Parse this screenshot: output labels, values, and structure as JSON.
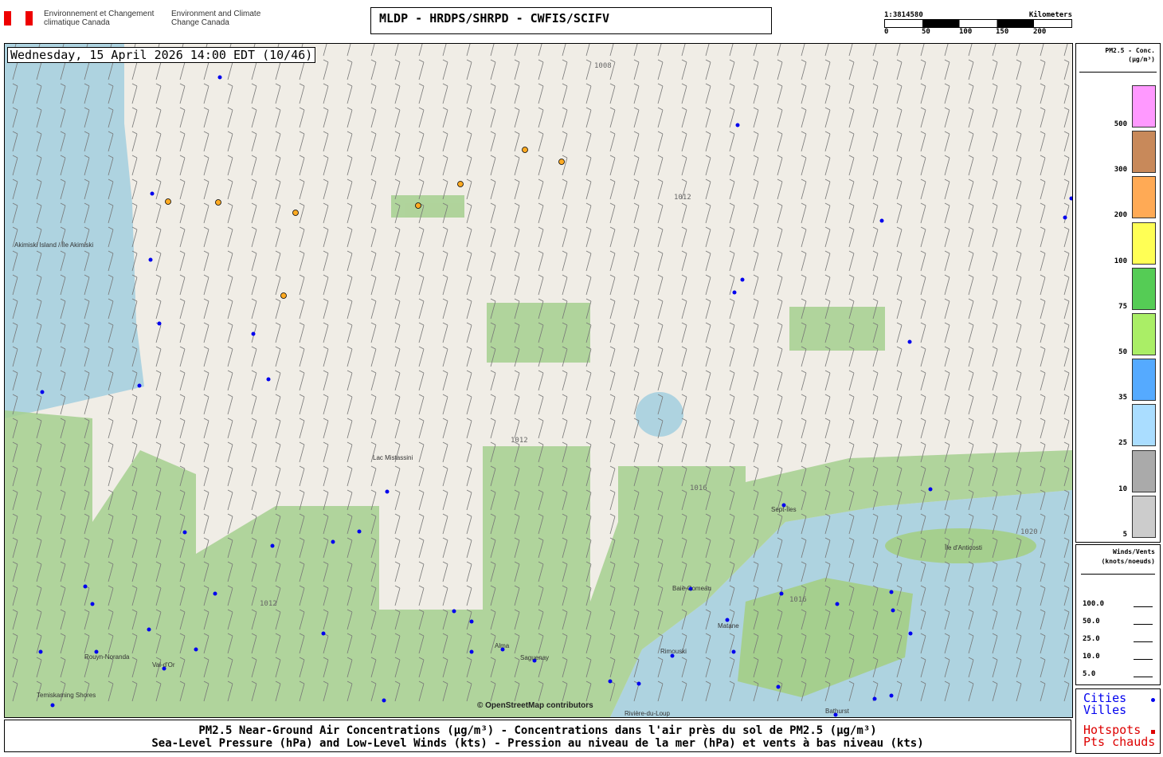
{
  "header": {
    "agency_fr": "Environnement et Changement climatique Canada",
    "agency_en": "Environment and Climate Change Canada",
    "title": "MLDP - HRDPS/SHRPD - CWFIS/SCIFV"
  },
  "scale": {
    "ratio": "1:3814580",
    "unit": "Kilometers",
    "ticks": [
      "0",
      "50",
      "100",
      "150",
      "200"
    ]
  },
  "map": {
    "datetime": "Wednesday, 15 April 2026 14:00 EDT (10/46)",
    "attribution": "© OpenStreetMap contributors",
    "places": [
      "Akimiski Island / Île Akimiski",
      "Lac Mistassini",
      "Sept-Îles",
      "Île d'Anticosti",
      "Baie-Comeau",
      "Matane",
      "Rimouski",
      "Alma",
      "Saguenay",
      "Rouyn-Noranda",
      "Val-d'Or",
      "Temiskaming Shores",
      "Rivière-du-Loup",
      "Bathurst"
    ],
    "isobars": [
      "1012",
      "1012",
      "1012",
      "1016",
      "1016",
      "1020",
      "1008"
    ]
  },
  "legend": {
    "title": "PM2.5 - Conc.",
    "unit": "(µg/m³)",
    "bins": [
      {
        "label": "500",
        "color": "#ff99ff"
      },
      {
        "label": "300",
        "color": "#c8895a"
      },
      {
        "label": "200",
        "color": "#ffaa55"
      },
      {
        "label": "100",
        "color": "#ffff55"
      },
      {
        "label": "75",
        "color": "#55cc55"
      },
      {
        "label": "50",
        "color": "#aaee66"
      },
      {
        "label": "35",
        "color": "#55aaff"
      },
      {
        "label": "25",
        "color": "#aaddff"
      },
      {
        "label": "10",
        "color": "#aaaaaa"
      },
      {
        "label": "5",
        "color": "#cccccc"
      }
    ]
  },
  "winds": {
    "title": "Winds/Vents",
    "unit": "(knots/noeuds)",
    "values": [
      "100.0",
      "50.0",
      "25.0",
      "10.0",
      "5.0"
    ]
  },
  "key": {
    "cities_en": "Cities",
    "cities_fr": "Villes",
    "hotspots_en": "Hotspots",
    "hotspots_fr": "Pts chauds",
    "city_color": "#0000ff",
    "hotspot_color": "#dd0000"
  },
  "caption": {
    "line1": "PM2.5 Near-Ground Air Concentrations (µg/m³) - Concentrations dans l'air près du sol de PM2.5 (µg/m³)",
    "line2": "Sea-Level Pressure (hPa) and Low-Level Winds (kts) - Pression au niveau de la mer (hPa) et vents à bas niveau (kts)"
  }
}
